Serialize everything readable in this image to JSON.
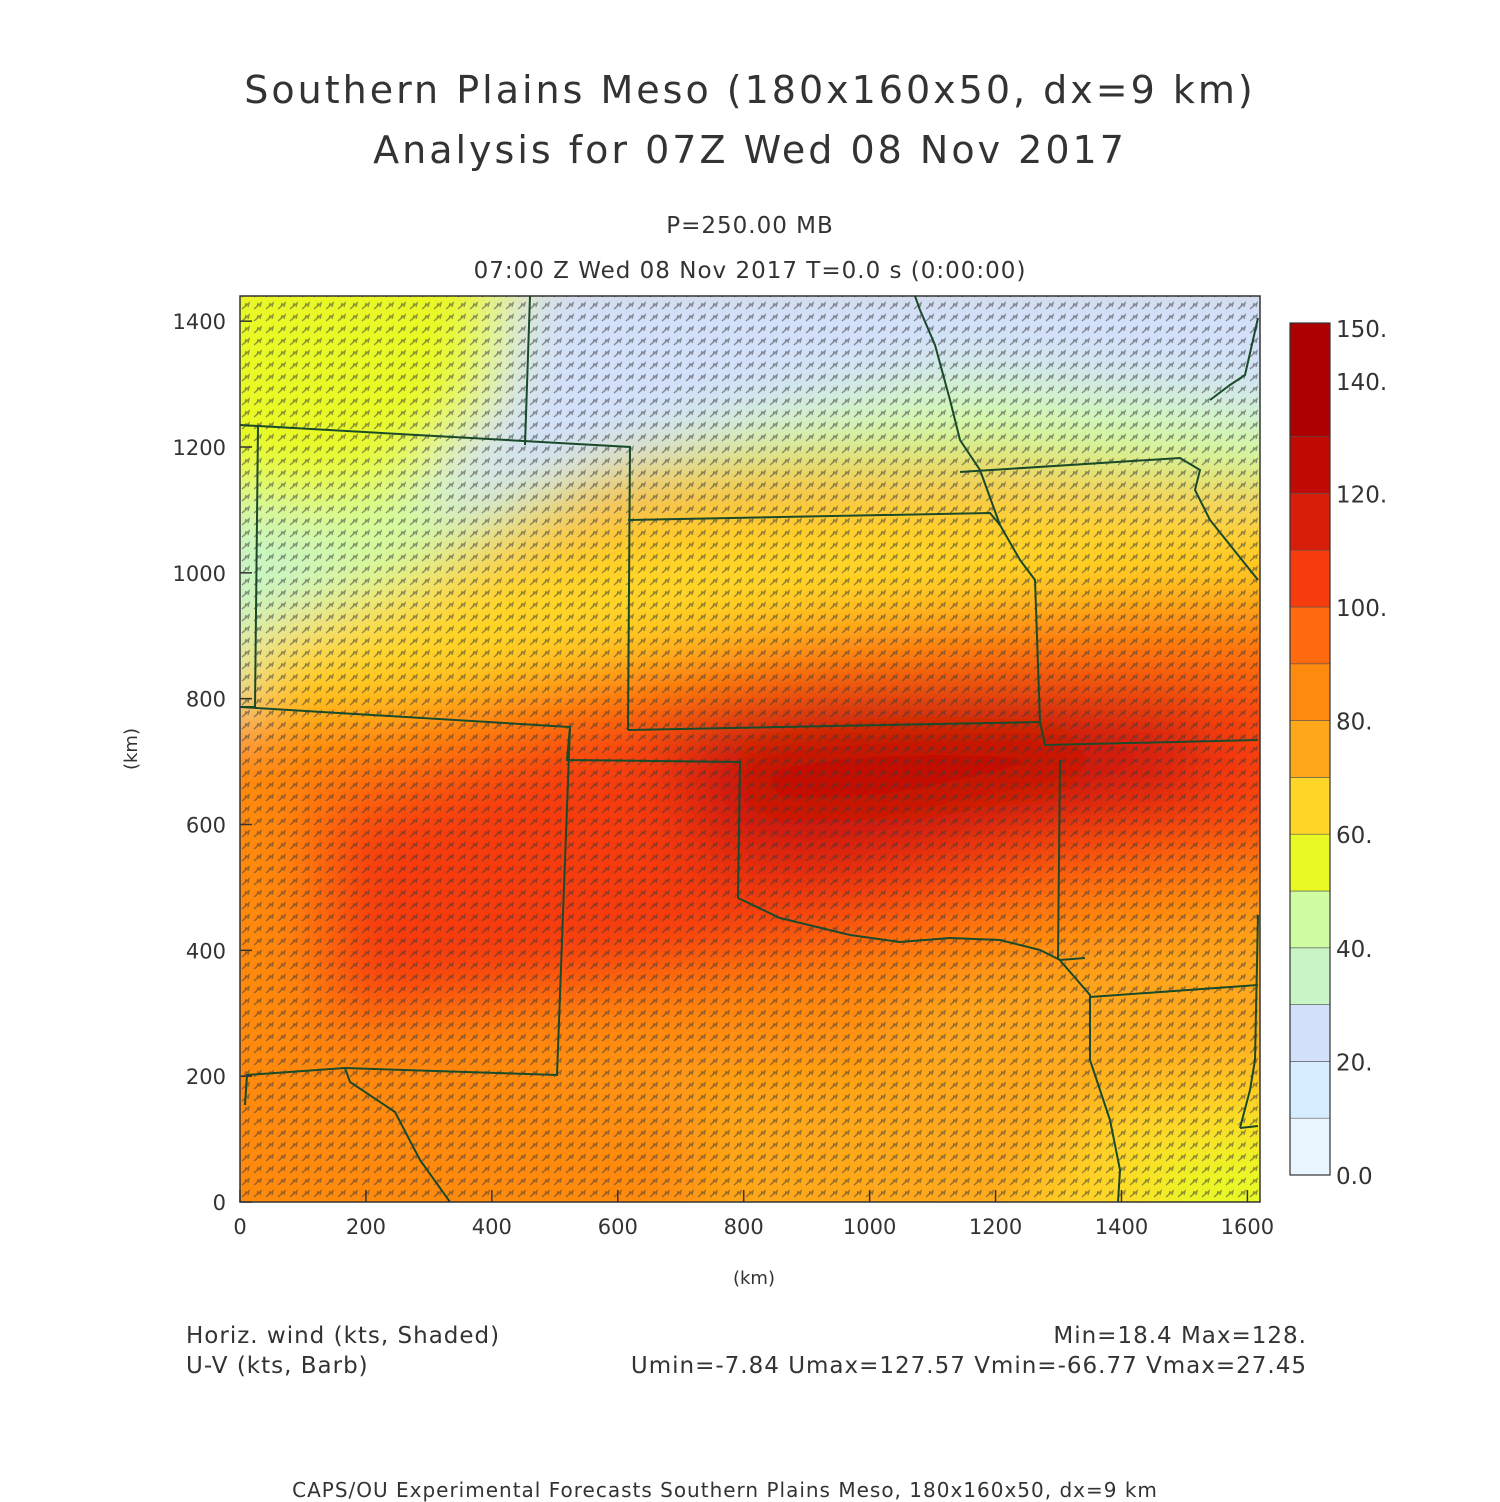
{
  "header": {
    "title_line1": "Southern Plains Meso (180x160x50, dx=9 km)",
    "title_line2": "Analysis for 07Z Wed 08 Nov 2017",
    "level": "P=250.00 MB",
    "time_line": "07:00 Z Wed 08 Nov 2017    T=0.0 s (0:00:00)"
  },
  "footer": {
    "field1": "Horiz. wind (kts, Shaded)",
    "field2": "U-V (kts, Barb)",
    "minmax": "Min=18.4 Max=128.",
    "uv_stats": "Umin=-7.84 Umax=127.57 Vmin=-66.77 Vmax=27.45",
    "credit": "CAPS/OU Experimental Forecasts  Southern Plains Meso, 180x160x50, dx=9 km"
  },
  "chart_data": {
    "type": "heatmap",
    "title": "Southern Plains Meso (180x160x50, dx=9 km)",
    "xlabel": "(km)",
    "ylabel": "(km)",
    "xlim": [
      0,
      1620
    ],
    "ylim": [
      0,
      1440
    ],
    "x_ticks": [
      "0",
      "200",
      "400",
      "600",
      "800",
      "1000",
      "1200",
      "1400",
      "1600"
    ],
    "y_ticks": [
      "0",
      "200",
      "400",
      "600",
      "800",
      "1000",
      "1200",
      "1400"
    ],
    "field": "Horiz. wind (kts)",
    "field_min": 18.4,
    "field_max": 128,
    "colorbar": {
      "levels": [
        0,
        10,
        20,
        30,
        40,
        50,
        60,
        70,
        80,
        90,
        100,
        110,
        120,
        130,
        140,
        150
      ],
      "labels": [
        "0.0",
        "20.",
        "40.",
        "60.",
        "80.",
        "100.",
        "120.",
        "140.",
        "150."
      ],
      "colors": [
        "#eaf6ff",
        "#d6ecff",
        "#d2e0fa",
        "#c8f5c3",
        "#d0fca2",
        "#e8f926",
        "#ffd528",
        "#ffa81a",
        "#ff8a10",
        "#ff6a10",
        "#f63b0e",
        "#d61e08",
        "#c00a04",
        "#ad0000"
      ]
    },
    "wind_jet_core_kts": 128,
    "barb_spacing_km": 18
  },
  "colors": {
    "boundary": "#1a4a2a",
    "axis": "#333333"
  }
}
